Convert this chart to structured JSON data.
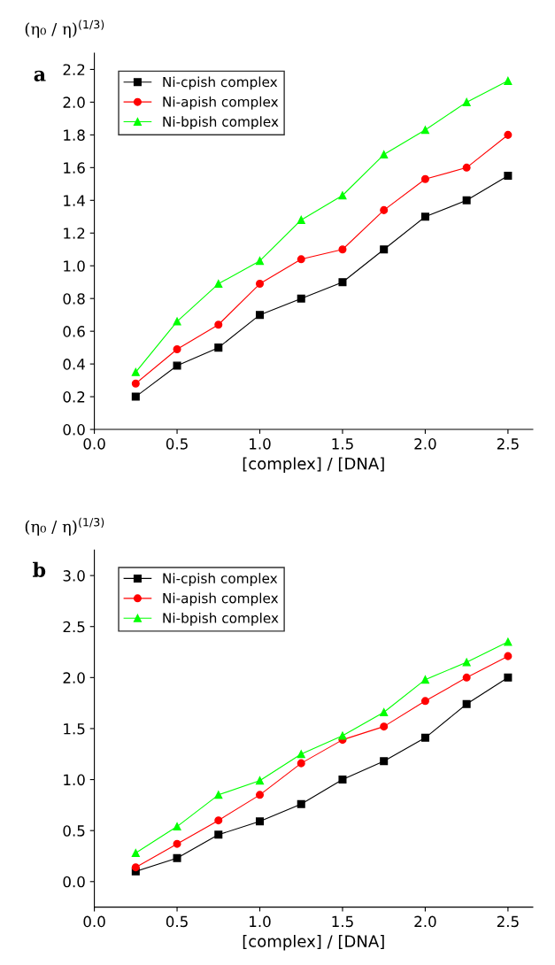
{
  "chart_data": [
    {
      "type": "line",
      "title": "a",
      "xlabel": "[complex] / [DNA]",
      "ylabel": "(η₀ / η)$^{(1/3)}$",
      "x": [
        0.25,
        0.5,
        0.75,
        1.0,
        1.25,
        1.5,
        1.75,
        2.0,
        2.25,
        2.5
      ],
      "xlim": [
        0,
        2.65
      ],
      "xticks": [
        {
          "value": 0,
          "label": "0.0"
        },
        0.5,
        {
          "value": 1,
          "label": "1.0"
        },
        1.5,
        {
          "value": 2,
          "label": "2.0"
        },
        2.5
      ],
      "ylim": [
        0,
        2.3
      ],
      "yticks": [
        {
          "value": 0,
          "label": "0.0"
        },
        0.2,
        0.4,
        0.6,
        0.8,
        {
          "value": 1,
          "label": "1.0"
        },
        1.2,
        1.4,
        1.6,
        1.8,
        {
          "value": 2,
          "label": "2.0"
        },
        2.2
      ],
      "legend": "top left",
      "grid": false,
      "series": [
        {
          "name": "Ni-cpish complex",
          "color": "#000000",
          "marker": "square",
          "values": [
            0.2,
            0.39,
            0.5,
            0.7,
            0.8,
            0.9,
            1.1,
            1.3,
            1.4,
            1.55
          ]
        },
        {
          "name": "Ni-apish complex",
          "color": "#ff0000",
          "marker": "circle",
          "values": [
            0.28,
            0.49,
            0.64,
            0.89,
            1.04,
            1.1,
            1.34,
            1.53,
            1.6,
            1.8
          ]
        },
        {
          "name": "Ni-bpish complex",
          "color": "#00ff00",
          "marker": "triangle",
          "values": [
            0.35,
            0.66,
            0.89,
            1.03,
            1.28,
            1.43,
            1.68,
            1.83,
            2.0,
            2.13
          ]
        }
      ]
    },
    {
      "type": "line",
      "title": "b",
      "xlabel": "[complex] / [DNA]",
      "ylabel": "(η₀ / η)$^{(1/3)}$",
      "x": [
        0.25,
        0.5,
        0.75,
        1.0,
        1.25,
        1.5,
        1.75,
        2.0,
        2.25,
        2.5
      ],
      "xlim": [
        0,
        2.65
      ],
      "xticks": [
        {
          "value": 0,
          "label": "0.0"
        },
        0.5,
        {
          "value": 1,
          "label": "1.0"
        },
        1.5,
        {
          "value": 2,
          "label": "2.0"
        },
        2.5
      ],
      "ylim": [
        -0.25,
        3.25
      ],
      "yticks": [
        {
          "value": 0,
          "label": "0.0"
        },
        0.5,
        {
          "value": 1,
          "label": "1.0"
        },
        1.5,
        {
          "value": 2,
          "label": "2.0"
        },
        2.5,
        {
          "value": 3,
          "label": "3.0"
        }
      ],
      "legend": "top left",
      "grid": false,
      "series": [
        {
          "name": "Ni-cpish complex",
          "color": "#000000",
          "marker": "square",
          "values": [
            0.1,
            0.23,
            0.46,
            0.59,
            0.76,
            1.0,
            1.18,
            1.41,
            1.74,
            2.0
          ]
        },
        {
          "name": "Ni-apish complex",
          "color": "#ff0000",
          "marker": "circle",
          "values": [
            0.14,
            0.37,
            0.6,
            0.85,
            1.16,
            1.39,
            1.52,
            1.77,
            2.0,
            2.21
          ]
        },
        {
          "name": "Ni-bpish complex",
          "color": "#00ff00",
          "marker": "triangle",
          "values": [
            0.28,
            0.54,
            0.85,
            0.99,
            1.25,
            1.43,
            1.66,
            1.98,
            2.15,
            2.35
          ]
        }
      ]
    }
  ]
}
